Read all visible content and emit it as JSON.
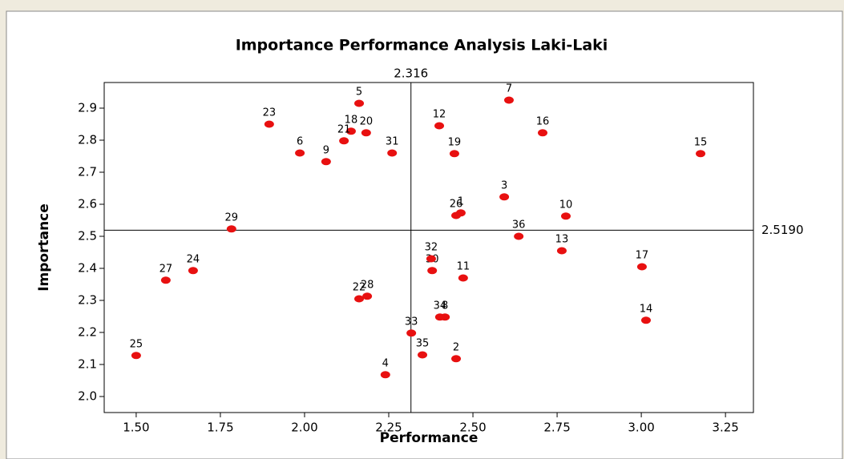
{
  "chart_data": {
    "type": "scatter",
    "title": "Importance Performance Analysis Laki-Laki",
    "xlabel": "Performance",
    "ylabel": "Importance",
    "labels": [
      "1",
      "2",
      "3",
      "4",
      "5",
      "6",
      "7",
      "8",
      "9",
      "10",
      "11",
      "12",
      "13",
      "14",
      "15",
      "16",
      "17",
      "18",
      "19",
      "20",
      "21",
      "22",
      "23",
      "24",
      "25",
      "26",
      "27",
      "28",
      "29",
      "30",
      "31",
      "32",
      "33",
      "34",
      "35",
      "36"
    ],
    "x": [
      2.464,
      2.45,
      2.593,
      2.24,
      2.162,
      1.986,
      2.607,
      2.417,
      2.064,
      2.776,
      2.471,
      2.4,
      2.764,
      3.014,
      3.176,
      2.707,
      3.002,
      2.138,
      2.445,
      2.183,
      2.117,
      2.162,
      1.895,
      1.669,
      1.5,
      2.45,
      1.588,
      2.186,
      1.783,
      2.379,
      2.26,
      2.376,
      2.317,
      2.402,
      2.35,
      2.636
    ],
    "y": [
      2.573,
      2.118,
      2.623,
      2.068,
      2.915,
      2.76,
      2.925,
      2.248,
      2.733,
      2.563,
      2.37,
      2.845,
      2.455,
      2.238,
      2.758,
      2.823,
      2.405,
      2.828,
      2.758,
      2.823,
      2.798,
      2.305,
      2.85,
      2.393,
      2.128,
      2.565,
      2.363,
      2.313,
      2.523,
      2.393,
      2.76,
      2.43,
      2.198,
      2.248,
      2.13,
      2.5
    ],
    "color": "#e81010",
    "xlim": [
      1.405,
      3.333
    ],
    "ylim": [
      1.95,
      2.98
    ],
    "xticks": [
      {
        "value": 1.5,
        "label": "1.50"
      },
      1.75,
      {
        "value": 2,
        "label": "2.00"
      },
      2.25,
      {
        "value": 2.5,
        "label": "2.50"
      },
      2.75,
      {
        "value": 3,
        "label": "3.00"
      },
      3.25
    ],
    "yticks": [
      {
        "value": 2,
        "label": "2.0"
      },
      2.1,
      2.2,
      2.3,
      2.4,
      2.5,
      2.6,
      2.7,
      2.8,
      2.9
    ],
    "vline": 2.316,
    "hline": {
      "value": 2.519,
      "label": "2.5190"
    }
  }
}
